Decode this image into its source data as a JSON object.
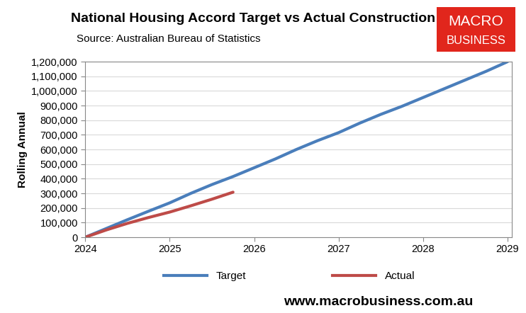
{
  "chart_data": {
    "type": "line",
    "title": "National Housing Accord Target vs Actual Construction",
    "subtitle": "Source: Australian Bureau of Statistics",
    "y_label": "Rolling Annual",
    "logo_text": [
      "MACRO",
      "BUSINESS"
    ],
    "footer": "www.macrobusiness.com.au",
    "x": [
      2024.0,
      2024.25,
      2024.5,
      2024.75,
      2025.0,
      2025.25,
      2025.5,
      2025.75,
      2026.0,
      2026.25,
      2026.5,
      2026.75,
      2027.0,
      2027.25,
      2027.5,
      2027.75,
      2028.0,
      2028.25,
      2028.5,
      2028.75,
      2029.0
    ],
    "series": [
      {
        "name": "Target",
        "color": "#4a7ebb",
        "values": [
          0,
          60000,
          120000,
          178000,
          235000,
          300000,
          360000,
          415000,
          475000,
          535000,
          600000,
          660000,
          715000,
          780000,
          840000,
          895000,
          955000,
          1015000,
          1075000,
          1135000,
          1200000
        ]
      },
      {
        "name": "Actual",
        "color": "#be4b48",
        "values": [
          0,
          50000,
          95000,
          135000,
          172000,
          215000,
          260000,
          308000,
          null,
          null,
          null,
          null,
          null,
          null,
          null,
          null,
          null,
          null,
          null,
          null,
          null
        ]
      }
    ],
    "xlim": [
      2024.0,
      2029.05
    ],
    "xticks": [
      2024,
      2025,
      2026,
      2027,
      2028,
      2029
    ],
    "ylim": [
      0,
      1200000
    ],
    "yticks": [
      {
        "value": 0,
        "label": "0"
      },
      {
        "value": 100000,
        "label": "100,000"
      },
      {
        "value": 200000,
        "label": "200,000"
      },
      {
        "value": 300000,
        "label": "300,000"
      },
      {
        "value": 400000,
        "label": "400,000"
      },
      {
        "value": 500000,
        "label": "500,000"
      },
      {
        "value": 600000,
        "label": "600,000"
      },
      {
        "value": 700000,
        "label": "700,000"
      },
      {
        "value": 800000,
        "label": "800,000"
      },
      {
        "value": 900000,
        "label": "900,000"
      },
      {
        "value": 1000000,
        "label": "1,000,000"
      },
      {
        "value": 1100000,
        "label": "1,100,000"
      },
      {
        "value": 1200000,
        "label": "1,200,000"
      }
    ],
    "grid": true,
    "legend": "bottom"
  }
}
